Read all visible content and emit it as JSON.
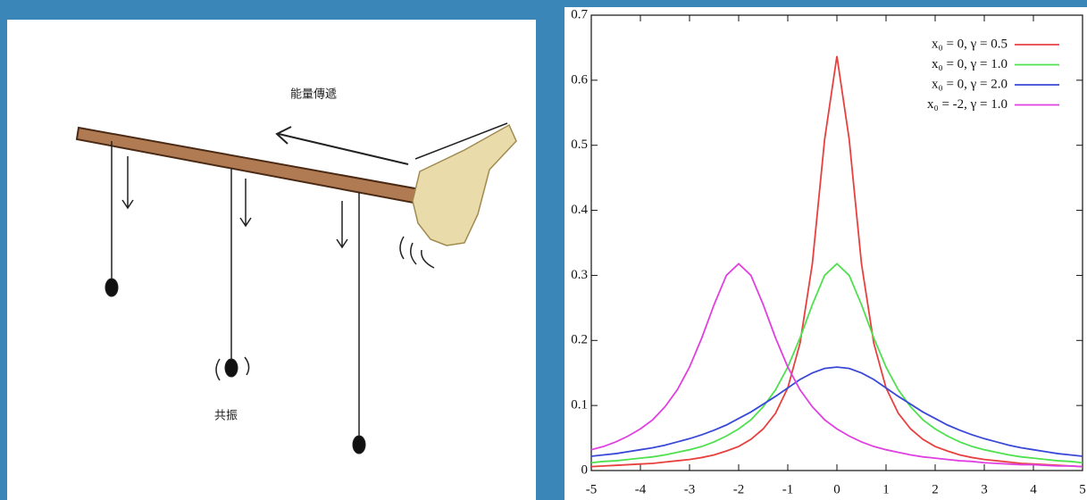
{
  "illustration": {
    "energy_label": "能量傳遞",
    "resonance_label": "共振"
  },
  "chart_data": {
    "type": "line",
    "x": [
      -5,
      -4.75,
      -4.5,
      -4.25,
      -4,
      -3.75,
      -3.5,
      -3.25,
      -3,
      -2.75,
      -2.5,
      -2.25,
      -2,
      -1.75,
      -1.5,
      -1.25,
      -1,
      -0.75,
      -0.5,
      -0.25,
      0,
      0.25,
      0.5,
      0.75,
      1,
      1.25,
      1.5,
      1.75,
      2,
      2.25,
      2.5,
      2.75,
      3,
      3.25,
      3.5,
      3.75,
      4,
      4.25,
      4.5,
      4.75,
      5
    ],
    "series": [
      {
        "name": "x₀ =  0, γ = 0.5",
        "color": "#e8403f",
        "values": [
          0.006,
          0.007,
          0.008,
          0.009,
          0.01,
          0.011,
          0.013,
          0.015,
          0.017,
          0.02,
          0.024,
          0.03,
          0.037,
          0.048,
          0.064,
          0.088,
          0.127,
          0.196,
          0.318,
          0.509,
          0.637,
          0.509,
          0.318,
          0.196,
          0.127,
          0.088,
          0.064,
          0.048,
          0.037,
          0.03,
          0.024,
          0.02,
          0.017,
          0.015,
          0.013,
          0.011,
          0.01,
          0.009,
          0.008,
          0.007,
          0.006
        ]
      },
      {
        "name": "x₀ =  0, γ = 1.0",
        "color": "#4ee04e",
        "values": [
          0.012,
          0.014,
          0.015,
          0.017,
          0.019,
          0.021,
          0.024,
          0.028,
          0.032,
          0.037,
          0.044,
          0.053,
          0.064,
          0.078,
          0.098,
          0.124,
          0.159,
          0.204,
          0.255,
          0.3,
          0.318,
          0.3,
          0.255,
          0.204,
          0.159,
          0.124,
          0.098,
          0.078,
          0.064,
          0.053,
          0.044,
          0.037,
          0.032,
          0.028,
          0.024,
          0.021,
          0.019,
          0.017,
          0.015,
          0.014,
          0.012
        ]
      },
      {
        "name": "x₀ =  0, γ = 2.0",
        "color": "#3a48d8",
        "values": [
          0.022,
          0.024,
          0.026,
          0.029,
          0.032,
          0.035,
          0.039,
          0.044,
          0.049,
          0.055,
          0.062,
          0.07,
          0.08,
          0.09,
          0.102,
          0.114,
          0.127,
          0.14,
          0.15,
          0.157,
          0.159,
          0.157,
          0.15,
          0.14,
          0.127,
          0.114,
          0.102,
          0.09,
          0.08,
          0.07,
          0.062,
          0.055,
          0.049,
          0.044,
          0.039,
          0.035,
          0.032,
          0.029,
          0.026,
          0.024,
          0.022
        ]
      },
      {
        "name": "x₀ = -2, γ = 1.0",
        "color": "#e040e0",
        "values": [
          0.032,
          0.037,
          0.044,
          0.053,
          0.064,
          0.078,
          0.098,
          0.124,
          0.159,
          0.204,
          0.255,
          0.3,
          0.318,
          0.3,
          0.255,
          0.204,
          0.159,
          0.124,
          0.098,
          0.078,
          0.064,
          0.053,
          0.044,
          0.037,
          0.032,
          0.028,
          0.024,
          0.021,
          0.019,
          0.017,
          0.015,
          0.014,
          0.012,
          0.011,
          0.01,
          0.009,
          0.009,
          0.008,
          0.007,
          0.007,
          0.006
        ]
      }
    ],
    "xlim": [
      -5,
      5
    ],
    "ylim": [
      0,
      0.7
    ],
    "xticks": [
      -5,
      -4,
      -3,
      -2,
      -1,
      0,
      1,
      2,
      3,
      4,
      5
    ],
    "yticks": [
      0,
      0.1,
      0.2,
      0.3,
      0.4,
      0.5,
      0.6,
      0.7
    ],
    "legend": "top right"
  }
}
